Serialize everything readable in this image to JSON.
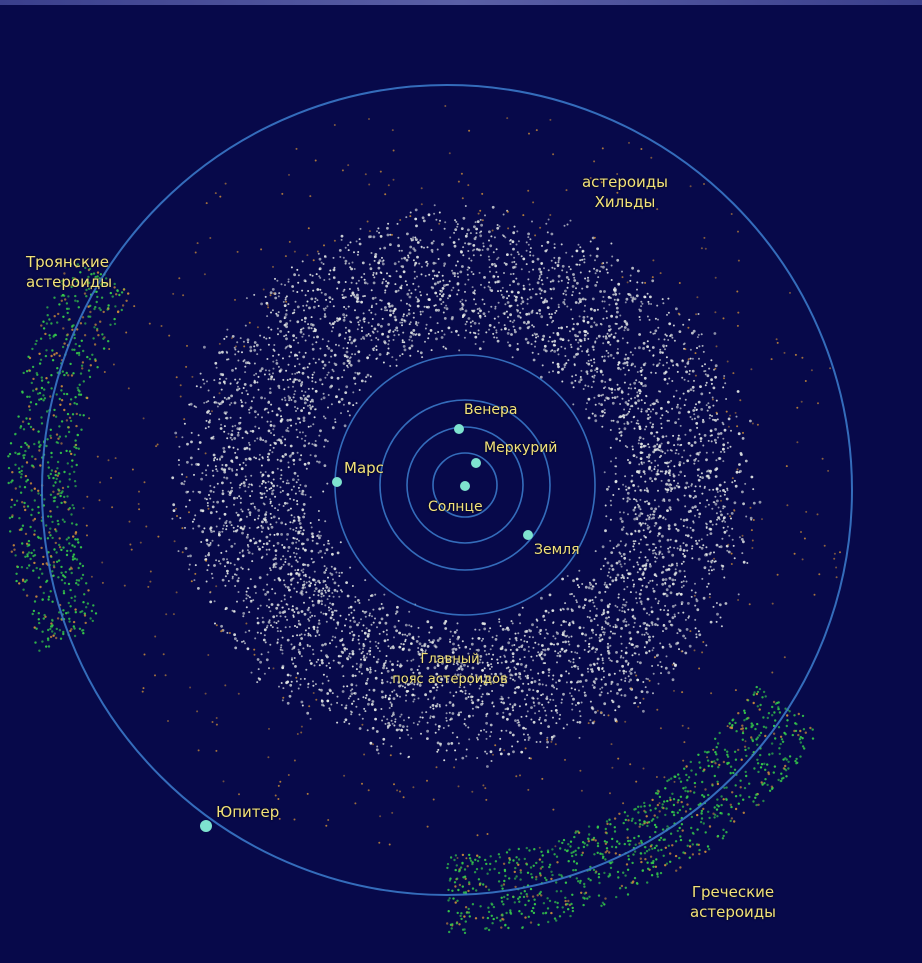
{
  "labels": {
    "trojans": "Троянские\nастероиды",
    "hilda": "астероиды\nХильды",
    "greeks": "Греческие\nастероиды",
    "jupiter": "Юпитер",
    "mars": "Марс",
    "venus": "Венера",
    "mercury": "Меркурий",
    "sun": "Солнце",
    "earth": "Земля",
    "main_belt": "Главный\nпояс астероидов"
  },
  "colors": {
    "background": "#07094a",
    "orbit": "#3a78c8",
    "planet": "#7ee3cf",
    "belt_dust": "#e8ece8",
    "trojan_green": "#35c84a",
    "hilda_orange": "#c88a3a",
    "label": "#f2e27a"
  }
}
